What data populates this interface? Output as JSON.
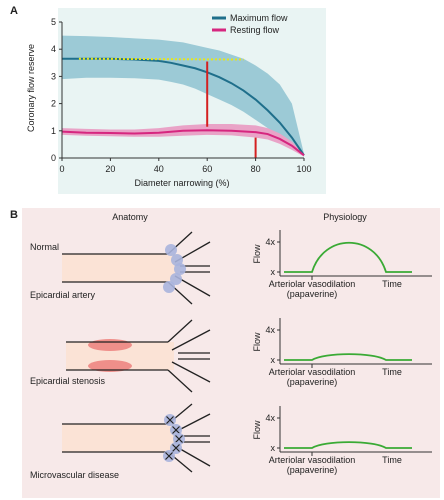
{
  "panel_a": {
    "letter": "A",
    "ylabel": "Coronary flow reserve",
    "xlabel": "Diameter narrowing (%)",
    "legend": {
      "max_flow": "Maximum flow",
      "resting_flow": "Resting flow"
    },
    "colors": {
      "max_band": "#9ccad6",
      "max_line": "#1f6f8b",
      "rest_band": "#e9a3c7",
      "rest_line": "#d6267f",
      "yellow_dotted": "#e6e619",
      "marker": "#d42020",
      "background": "#e9f4f3"
    }
  },
  "chart_data": {
    "type": "line",
    "xlabel": "Diameter narrowing (%)",
    "ylabel": "Coronary flow reserve",
    "xlim": [
      0,
      100
    ],
    "ylim": [
      0,
      5
    ],
    "x_ticks": [
      "0",
      "20",
      "40",
      "60",
      "80",
      "100"
    ],
    "y_ticks": [
      "0",
      "1",
      "2",
      "3",
      "4",
      "5"
    ],
    "series": [
      {
        "name": "Maximum flow",
        "x": [
          0,
          10,
          20,
          30,
          40,
          45,
          50,
          55,
          60,
          65,
          70,
          75,
          80,
          85,
          90,
          95,
          100
        ],
        "y": [
          3.65,
          3.65,
          3.65,
          3.62,
          3.57,
          3.5,
          3.4,
          3.3,
          3.15,
          2.97,
          2.75,
          2.48,
          2.15,
          1.75,
          1.3,
          0.75,
          0.1
        ],
        "band_upper": [
          4.5,
          4.48,
          4.45,
          4.4,
          4.35,
          4.3,
          4.25,
          4.15,
          4.05,
          3.95,
          3.8,
          3.65,
          3.4,
          3.1,
          2.7,
          2.0,
          0.15
        ],
        "band_lower": [
          2.9,
          2.95,
          2.95,
          2.93,
          2.88,
          2.8,
          2.7,
          2.55,
          2.35,
          2.15,
          1.95,
          1.7,
          1.4,
          1.1,
          0.8,
          0.45,
          0.05
        ]
      },
      {
        "name": "Resting flow",
        "x": [
          0,
          10,
          20,
          30,
          40,
          50,
          60,
          70,
          80,
          85,
          90,
          95,
          100
        ],
        "y": [
          0.97,
          0.93,
          0.92,
          0.9,
          0.93,
          1.0,
          1.02,
          1.0,
          0.95,
          0.88,
          0.7,
          0.45,
          0.1
        ],
        "band_upper": [
          1.1,
          1.07,
          1.05,
          1.05,
          1.1,
          1.2,
          1.25,
          1.25,
          1.2,
          1.1,
          0.9,
          0.6,
          0.15
        ],
        "band_lower": [
          0.85,
          0.82,
          0.8,
          0.78,
          0.78,
          0.82,
          0.85,
          0.83,
          0.75,
          0.68,
          0.52,
          0.3,
          0.05
        ]
      }
    ],
    "yellow_dotted_line": {
      "x": [
        7,
        75
      ],
      "y": [
        3.65,
        3.62
      ]
    },
    "red_markers": [
      {
        "x": 60,
        "y_top": 3.55,
        "y_bottom": 1.15
      },
      {
        "x": 80,
        "y_top": 0.75,
        "y_bottom": 0.0
      }
    ]
  },
  "panel_b": {
    "letter": "B",
    "anatomy_header": "Anatomy",
    "physiology_header": "Physiology",
    "colors": {
      "background": "#f7e9e9",
      "vessel_fill": "#fbe3d6",
      "stenosis": "#ef8f8a",
      "nodes": "#a8b4dd",
      "flow_line": "#3aaa35"
    },
    "rows": [
      {
        "label_top": "Normal",
        "label_bottom": "Epicardial artery",
        "flow_ylabel": "Flow",
        "y_tick_top": "4x",
        "y_tick_bottom": "x",
        "x_label": "Arteriolar vasodilation",
        "x_label2": "(papaverine)",
        "time_label": "Time",
        "peak_multiple": 4
      },
      {
        "label_top": "",
        "label_bottom": "Epicardial stenosis",
        "flow_ylabel": "Flow",
        "y_tick_top": "4x",
        "y_tick_bottom": "x",
        "x_label": "Arteriolar vasodilation",
        "x_label2": "(papaverine)",
        "time_label": "Time",
        "peak_multiple": 1.6
      },
      {
        "label_top": "",
        "label_bottom": "Microvascular disease",
        "flow_ylabel": "Flow",
        "y_tick_top": "4x",
        "y_tick_bottom": "x",
        "x_label": "Arteriolar vasodilation",
        "x_label2": "(papaverine)",
        "time_label": "Time",
        "peak_multiple": 1.6
      }
    ]
  }
}
